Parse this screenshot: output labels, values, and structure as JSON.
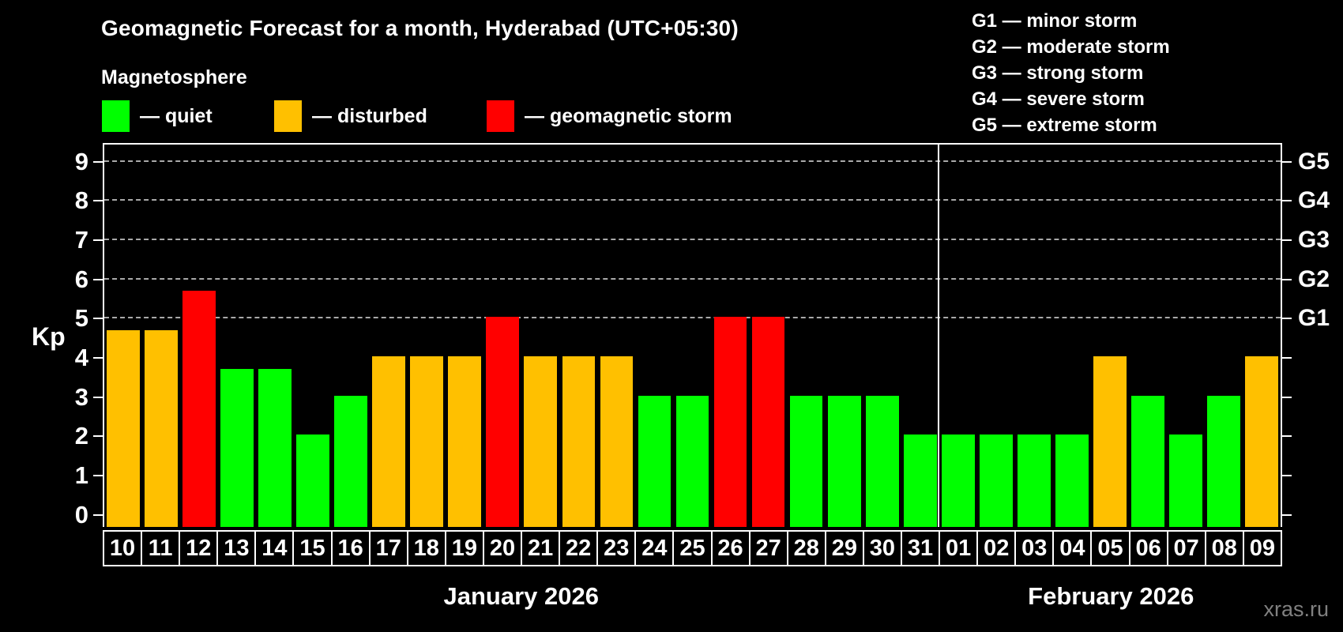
{
  "title": "Geomagnetic Forecast for a month, Hyderabad (UTC+05:30)",
  "subtitle": "Magnetosphere",
  "legend": [
    {
      "key": "quiet",
      "label": "— quiet"
    },
    {
      "key": "disturbed",
      "label": "— disturbed"
    },
    {
      "key": "storm",
      "label": "— geomagnetic storm"
    }
  ],
  "storm_scale": [
    {
      "code": "G1",
      "label": "minor storm"
    },
    {
      "code": "G2",
      "label": "moderate storm"
    },
    {
      "code": "G3",
      "label": "strong storm"
    },
    {
      "code": "G4",
      "label": "severe storm"
    },
    {
      "code": "G5",
      "label": "extreme storm"
    }
  ],
  "colors": {
    "quiet": "#00ff00",
    "disturbed": "#ffc000",
    "storm": "#ff0000",
    "background": "#000000",
    "axis": "#ffffff",
    "grid": "#a9a9a9"
  },
  "chart_data": {
    "type": "bar",
    "ylabel": "Kp",
    "ylim": [
      0,
      9
    ],
    "yticks": [
      0,
      1,
      2,
      3,
      4,
      5,
      6,
      7,
      8,
      9
    ],
    "grid_levels": [
      5,
      6,
      7,
      8,
      9
    ],
    "right_axis_labels": [
      {
        "level": 5,
        "label": "G1"
      },
      {
        "level": 6,
        "label": "G2"
      },
      {
        "level": 7,
        "label": "G3"
      },
      {
        "level": 8,
        "label": "G4"
      },
      {
        "level": 9,
        "label": "G5"
      }
    ],
    "categories": [
      "10",
      "11",
      "12",
      "13",
      "14",
      "15",
      "16",
      "17",
      "18",
      "19",
      "20",
      "21",
      "22",
      "23",
      "24",
      "25",
      "26",
      "27",
      "28",
      "29",
      "30",
      "31",
      "01",
      "02",
      "03",
      "04",
      "05",
      "06",
      "07",
      "08",
      "09"
    ],
    "values": [
      4.67,
      4.67,
      5.67,
      3.67,
      3.67,
      2,
      3,
      4,
      4,
      4,
      5,
      4,
      4,
      4,
      3,
      3,
      5,
      5,
      3,
      3,
      3,
      2,
      2,
      2,
      2,
      2,
      4,
      3,
      2,
      3,
      4
    ],
    "statuses": [
      "disturbed",
      "disturbed",
      "storm",
      "quiet",
      "quiet",
      "quiet",
      "quiet",
      "disturbed",
      "disturbed",
      "disturbed",
      "storm",
      "disturbed",
      "disturbed",
      "disturbed",
      "quiet",
      "quiet",
      "storm",
      "storm",
      "quiet",
      "quiet",
      "quiet",
      "quiet",
      "quiet",
      "quiet",
      "quiet",
      "quiet",
      "disturbed",
      "quiet",
      "quiet",
      "quiet",
      "disturbed"
    ],
    "months": [
      {
        "label": "January 2026",
        "days": 22
      },
      {
        "label": "February 2026",
        "days": 9
      }
    ],
    "legend_position": "top",
    "grid": "dashed horizontal at storm levels only"
  },
  "watermark": "xras.ru"
}
